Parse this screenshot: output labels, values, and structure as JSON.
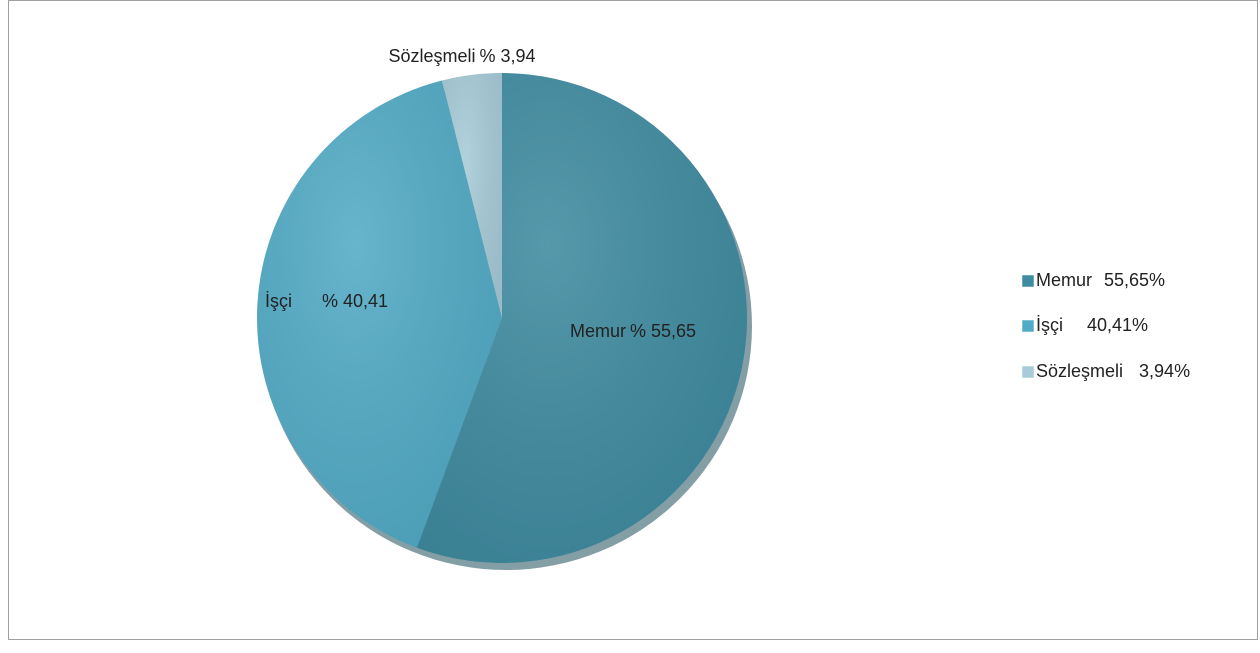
{
  "chart_data": {
    "type": "pie",
    "categories": [
      "Memur",
      "İşçi",
      "Sözleşmeli"
    ],
    "values": [
      55.65,
      40.41,
      3.94
    ],
    "value_labels": [
      "% 55,65",
      "% 40,41",
      "% 3,94"
    ],
    "legend_value_labels": [
      "55,65%",
      "40,41%",
      "3,94%"
    ],
    "colors": [
      "#3f8ba0",
      "#52abc6",
      "#a7cbd8"
    ],
    "legend": "right"
  }
}
